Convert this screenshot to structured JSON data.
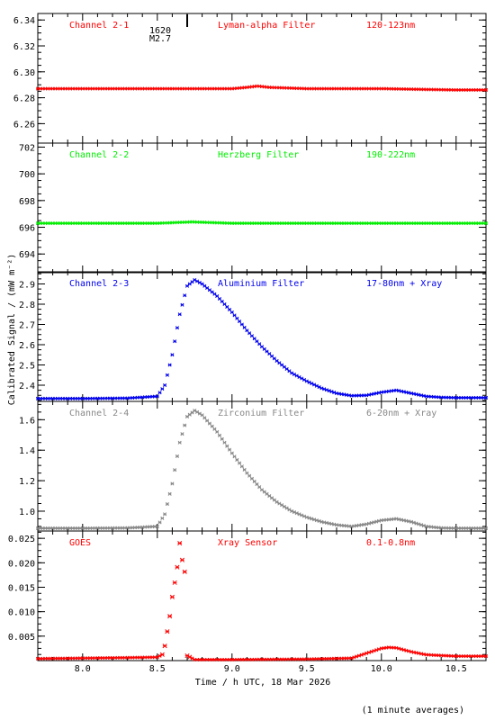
{
  "figure": {
    "ylabel": "Calibrated Signal / (mW m⁻²)",
    "xlabel": "Time / h UTC, 18 Mar 2026",
    "footnote": "(1 minute averages)",
    "event_time": "1620",
    "event_class": "M2.7"
  },
  "chart_data": [
    {
      "type": "scatter",
      "channel": "Channel 2-1",
      "filter": "Lyman-alpha Filter",
      "band": "120-123nm",
      "color": "#ff0000",
      "xlim": [
        7.7,
        10.7
      ],
      "ylim": [
        6.245,
        6.345
      ],
      "yticks": [
        "6.26",
        "6.28",
        "6.30",
        "6.32",
        "6.34"
      ],
      "series": [
        {
          "x": [
            7.7,
            8.0,
            8.5,
            9.0,
            9.1,
            9.17,
            9.25,
            9.5,
            10.0,
            10.5,
            10.7
          ],
          "values": [
            6.287,
            6.287,
            6.287,
            6.287,
            6.288,
            6.289,
            6.288,
            6.287,
            6.287,
            6.286,
            6.286
          ]
        }
      ]
    },
    {
      "type": "scatter",
      "channel": "Channel 2-2",
      "filter": "Herzberg Filter",
      "band": "190-222nm",
      "color": "#00ee00",
      "xlim": [
        7.7,
        10.7
      ],
      "ylim": [
        692.6,
        702.3
      ],
      "yticks": [
        "694",
        "696",
        "698",
        "700",
        "702"
      ],
      "series": [
        {
          "x": [
            7.7,
            8.5,
            8.73,
            9.0,
            9.5,
            10.0,
            10.5,
            10.7
          ],
          "values": [
            696.3,
            696.3,
            696.4,
            696.3,
            696.3,
            696.3,
            696.3,
            696.3
          ]
        }
      ]
    },
    {
      "type": "scatter",
      "channel": "Channel 2-3",
      "filter": "Aluminium Filter",
      "band": "17-80nm + Xray",
      "color": "#0000ee",
      "xlim": [
        7.7,
        10.7
      ],
      "ylim": [
        2.32,
        2.96
      ],
      "yticks": [
        "2.4",
        "2.5",
        "2.6",
        "2.7",
        "2.8",
        "2.9"
      ],
      "series": [
        {
          "x": [
            7.7,
            8.0,
            8.3,
            8.5,
            8.55,
            8.6,
            8.65,
            8.7,
            8.75,
            8.8,
            8.9,
            9.0,
            9.1,
            9.2,
            9.3,
            9.4,
            9.5,
            9.6,
            9.7,
            9.8,
            9.9,
            10.0,
            10.1,
            10.2,
            10.3,
            10.4,
            10.5,
            10.7
          ],
          "values": [
            2.334,
            2.334,
            2.336,
            2.345,
            2.4,
            2.55,
            2.75,
            2.89,
            2.92,
            2.9,
            2.84,
            2.76,
            2.67,
            2.59,
            2.52,
            2.46,
            2.42,
            2.385,
            2.36,
            2.348,
            2.35,
            2.365,
            2.375,
            2.36,
            2.345,
            2.34,
            2.338,
            2.338
          ]
        }
      ]
    },
    {
      "type": "scatter",
      "channel": "Channel 2-4",
      "filter": "Zirconium Filter",
      "band": "6-20nm + Xray",
      "color": "#888888",
      "xlim": [
        7.7,
        10.7
      ],
      "ylim": [
        0.87,
        1.72
      ],
      "yticks": [
        "1.0",
        "1.2",
        "1.4",
        "1.6"
      ],
      "series": [
        {
          "x": [
            7.7,
            8.0,
            8.3,
            8.5,
            8.55,
            8.6,
            8.65,
            8.7,
            8.75,
            8.8,
            8.9,
            9.0,
            9.1,
            9.2,
            9.3,
            9.4,
            9.5,
            9.6,
            9.7,
            9.8,
            9.9,
            10.0,
            10.1,
            10.2,
            10.3,
            10.4,
            10.5,
            10.7
          ],
          "values": [
            0.888,
            0.888,
            0.89,
            0.9,
            0.98,
            1.18,
            1.45,
            1.62,
            1.66,
            1.63,
            1.52,
            1.38,
            1.25,
            1.14,
            1.06,
            1.0,
            0.96,
            0.93,
            0.91,
            0.9,
            0.915,
            0.94,
            0.95,
            0.93,
            0.9,
            0.89,
            0.888,
            0.888
          ]
        }
      ]
    },
    {
      "type": "scatter",
      "channel": "GOES",
      "filter": "Xray Sensor",
      "band": "0.1-0.8nm",
      "color": "#ff0000",
      "xlim": [
        7.7,
        10.7
      ],
      "ylim": [
        0.0,
        0.0265
      ],
      "yticks": [
        "0.005",
        "0.010",
        "0.015",
        "0.020",
        "0.025"
      ],
      "xticks": [
        "8.0",
        "8.5",
        "9.0",
        "9.5",
        "10.0",
        "10.5"
      ],
      "series": [
        {
          "x": [
            7.7,
            8.0,
            8.3,
            8.5,
            8.533,
            8.55,
            8.567,
            8.583,
            8.6,
            8.617,
            8.633,
            8.65,
            8.667,
            8.683,
            8.7,
            8.75,
            9.0,
            9.5,
            9.8,
            9.9,
            10.0,
            10.05,
            10.1,
            10.2,
            10.3,
            10.5,
            10.7
          ],
          "values": [
            0.0004,
            0.0005,
            0.0006,
            0.0007,
            0.0012,
            0.003,
            0.006,
            0.009,
            0.013,
            0.016,
            0.019,
            0.024,
            0.0205,
            0.0185,
            0.001,
            0.0002,
            0.0002,
            0.0003,
            0.0005,
            0.0015,
            0.0025,
            0.0027,
            0.0026,
            0.0018,
            0.0012,
            0.0009,
            0.0009
          ]
        }
      ]
    }
  ]
}
